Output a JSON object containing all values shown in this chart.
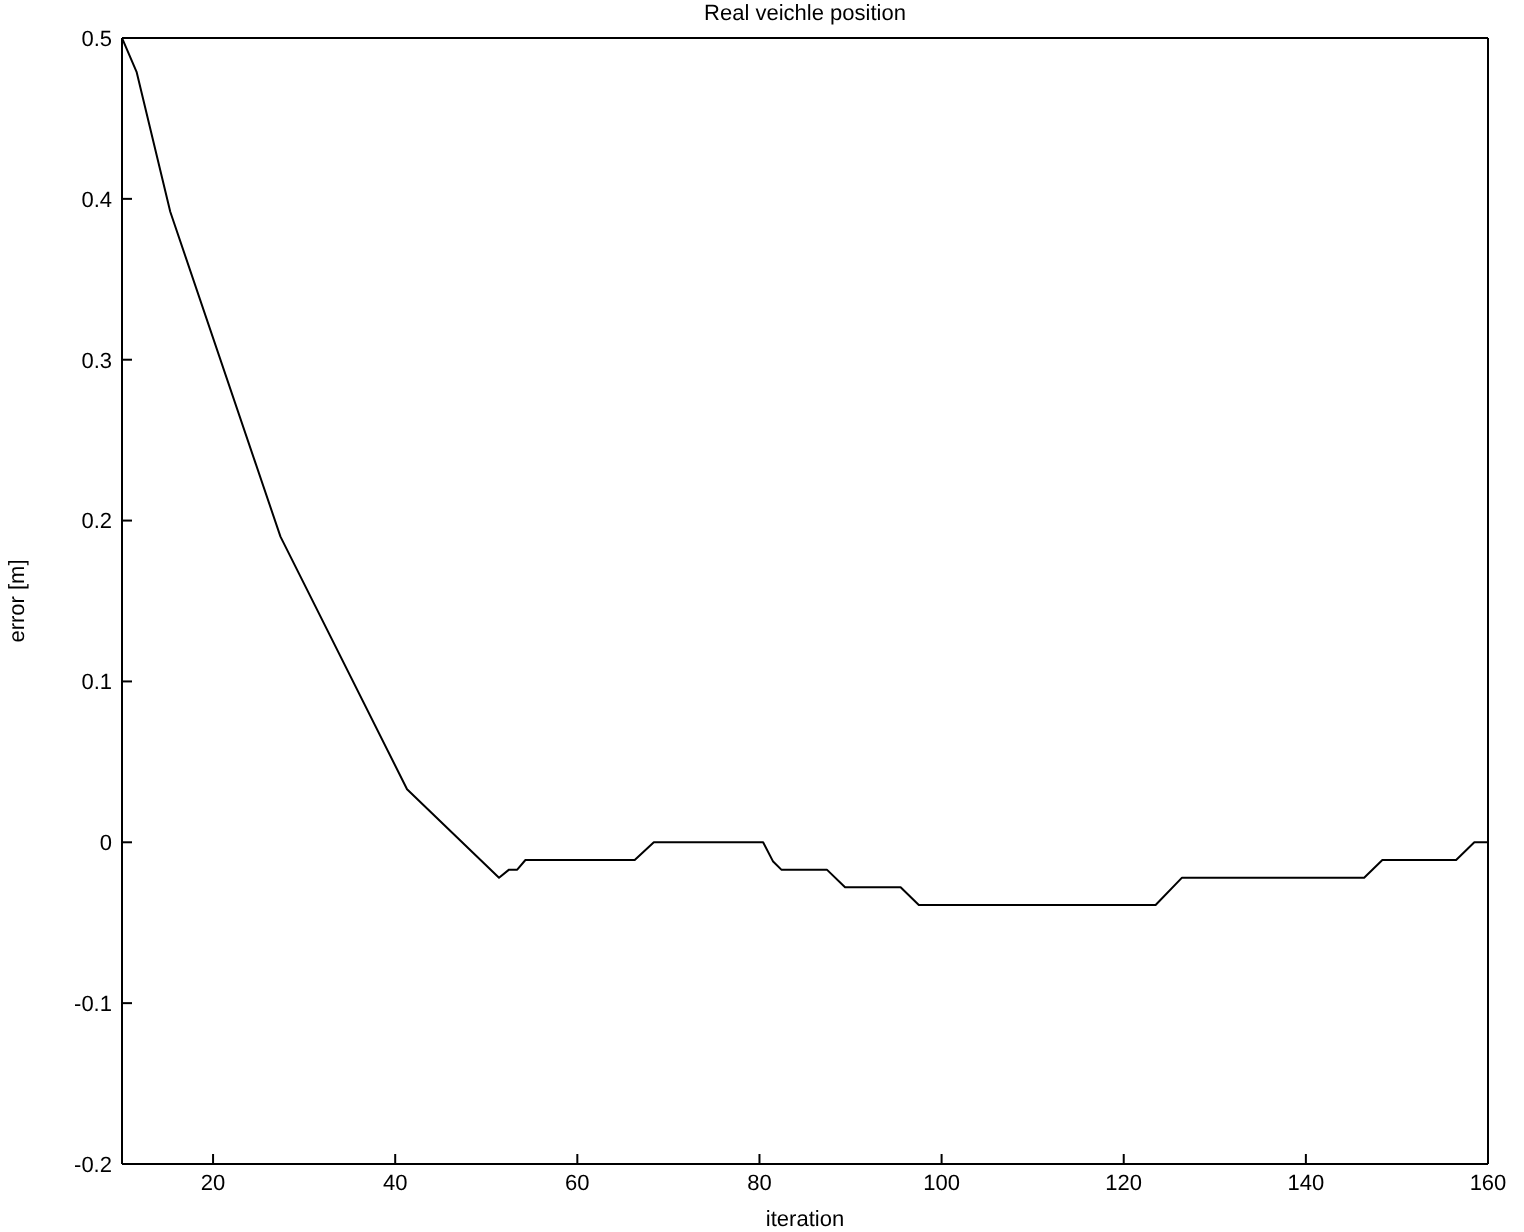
{
  "chart_data": {
    "type": "line",
    "title": "Real veichle position",
    "xlabel": "iteration",
    "ylabel": "error [m]",
    "xlim": [
      10,
      160
    ],
    "xticks": [
      20,
      40,
      60,
      80,
      100,
      120,
      140,
      160
    ],
    "ylim": [
      -0.2,
      0.5
    ],
    "yticks": [
      -0.2,
      -0.1,
      0,
      0.1,
      0.2,
      0.3,
      0.4,
      0.5
    ],
    "marker": "none",
    "line_style": "solid",
    "series": [
      {
        "color": "#000000",
        "x": [
          10,
          11.6,
          15.3,
          27.4,
          41.3,
          51.4,
          52.5,
          53.4,
          54.3,
          66.3,
          68.4,
          80.4,
          81.5,
          82.4,
          87.4,
          89.4,
          95.5,
          97.5,
          123.5,
          126.4,
          146.4,
          148.4,
          156.5,
          158.5,
          160
        ],
        "values": [
          0.5,
          0.479,
          0.392,
          0.19,
          0.033,
          -0.022,
          -0.017,
          -0.017,
          -0.011,
          -0.011,
          0,
          0,
          -0.012,
          -0.017,
          -0.017,
          -0.028,
          -0.028,
          -0.039,
          -0.039,
          -0.022,
          -0.022,
          -0.011,
          -0.011,
          0,
          0
        ]
      }
    ]
  }
}
